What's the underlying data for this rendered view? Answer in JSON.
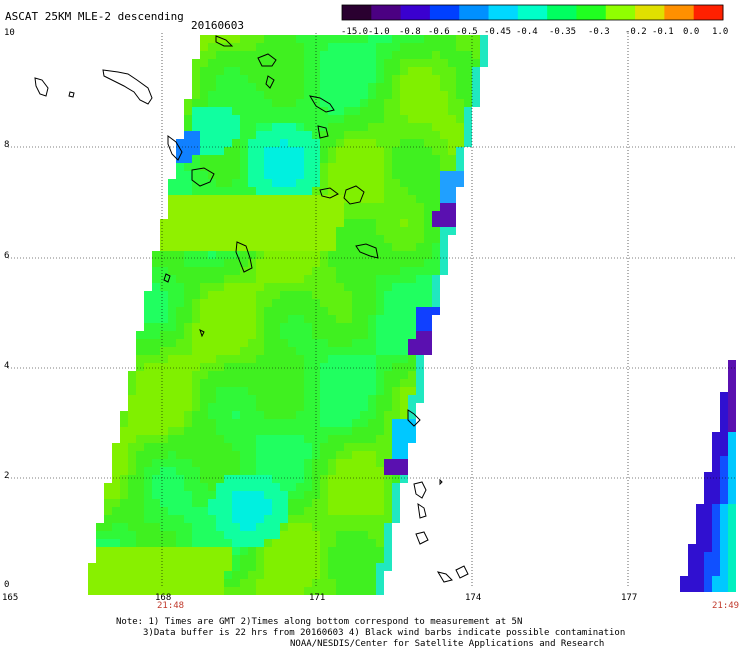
{
  "header": {
    "title": "ASCAT 25KM MLE-2 descending",
    "date": "20160603"
  },
  "colorbar": {
    "labels": [
      "-15.0",
      "-1.0",
      "-0.8",
      "-0.6",
      "-0.5",
      "-0.45",
      "-0.4",
      "-0.35",
      "-0.3",
      "-0.2",
      "-0.1",
      "0.0",
      "1.0"
    ],
    "colors": [
      "#2a0030",
      "#4b0082",
      "#3a00d0",
      "#0040ff",
      "#0090ff",
      "#00d8ff",
      "#00ffc8",
      "#00ff60",
      "#20ff20",
      "#90ff00",
      "#e0e000",
      "#ff9000",
      "#ff2000"
    ]
  },
  "axes": {
    "y_labels": [
      "0",
      "2",
      "4",
      "6",
      "8",
      "10"
    ],
    "x_labels": [
      "165",
      "168",
      "171",
      "174",
      "177"
    ]
  },
  "times": {
    "left": "21:48",
    "right": "21:49"
  },
  "notes": {
    "line1": "Note: 1) Times are GMT 2)Times along bottom correspond to measurement at 5N",
    "line2": "3)Data buffer is 22 hrs from 20160603 4) Black wind barbs indicate possible contamination",
    "line3": "NOAA/NESDIS/Center for Satellite Applications and Research"
  }
}
